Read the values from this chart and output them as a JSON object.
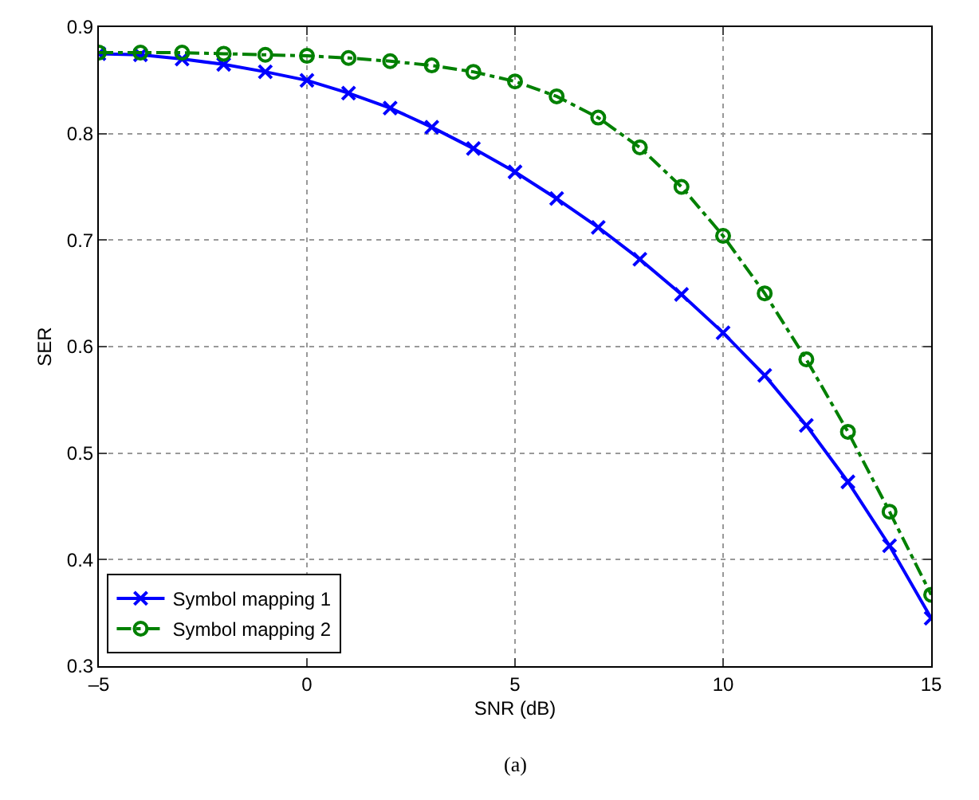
{
  "chart_data": {
    "type": "line",
    "xlabel": "SNR (dB)",
    "ylabel": "SER",
    "annotations": [
      "(a)"
    ],
    "x": [
      -5,
      -4,
      -3,
      -2,
      -1,
      0,
      1,
      2,
      3,
      4,
      5,
      6,
      7,
      8,
      9,
      10,
      11,
      12,
      13,
      14,
      15
    ],
    "series": [
      {
        "name": "Symbol mapping 1",
        "color": "#0000ff",
        "marker": "cross",
        "line_style": "solid",
        "values": [
          0.875,
          0.874,
          0.87,
          0.865,
          0.858,
          0.85,
          0.838,
          0.824,
          0.806,
          0.786,
          0.764,
          0.739,
          0.712,
          0.682,
          0.649,
          0.613,
          0.573,
          0.526,
          0.473,
          0.413,
          0.345
        ]
      },
      {
        "name": "Symbol mapping 2",
        "color": "#008000",
        "marker": "circle",
        "line_style": "dashdot",
        "values": [
          0.876,
          0.876,
          0.876,
          0.875,
          0.874,
          0.873,
          0.871,
          0.868,
          0.864,
          0.858,
          0.849,
          0.835,
          0.815,
          0.787,
          0.75,
          0.704,
          0.65,
          0.588,
          0.52,
          0.445,
          0.367
        ]
      }
    ],
    "xlim": [
      -5,
      15
    ],
    "xticks": [
      {
        "value": -5,
        "label": "–5"
      },
      0,
      5,
      10,
      15
    ],
    "ylim": [
      0.3,
      0.9
    ],
    "yticks": [
      0.3,
      0.4,
      0.5,
      0.6,
      0.7,
      0.8,
      0.9
    ],
    "grid": true,
    "legend": "bottom left"
  }
}
